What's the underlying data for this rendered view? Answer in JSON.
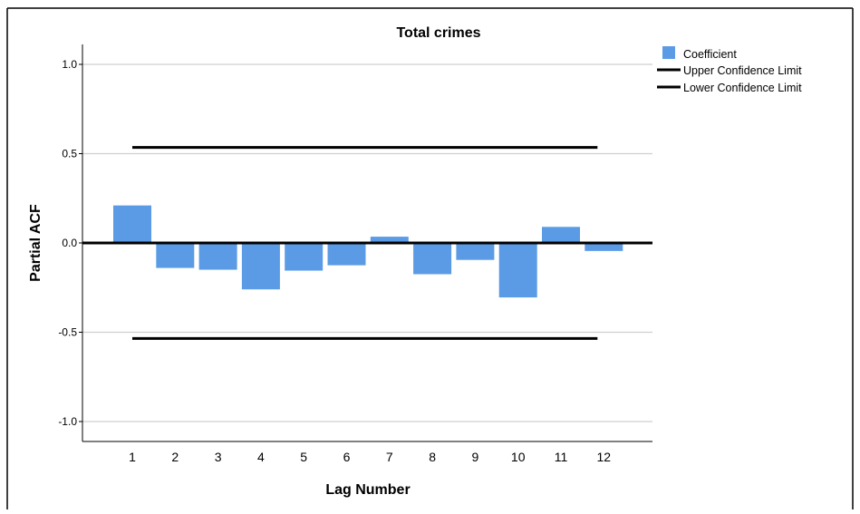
{
  "chart_data": {
    "type": "bar",
    "title": "Total crimes",
    "xlabel": "Lag Number",
    "ylabel": "Partial ACF",
    "categories": [
      "1",
      "2",
      "3",
      "4",
      "5",
      "6",
      "7",
      "8",
      "9",
      "10",
      "11",
      "12"
    ],
    "series": [
      {
        "name": "Coefficient",
        "values": [
          0.21,
          -0.14,
          -0.15,
          -0.26,
          -0.155,
          -0.125,
          0.035,
          -0.175,
          -0.095,
          -0.305,
          0.09,
          -0.045
        ]
      }
    ],
    "upper_confidence_limit": 0.535,
    "lower_confidence_limit": -0.535,
    "ylim": [
      -1.1,
      1.1
    ],
    "yticks": [
      1.0,
      0.5,
      0.0,
      -0.5,
      -1.0
    ],
    "ytick_labels": [
      "1.0",
      "0.5",
      "0.0",
      "-0.5",
      "-1.0"
    ],
    "legend": {
      "position": "top-right",
      "entries": [
        "Coefficient",
        "Upper Confidence Limit",
        "Lower Confidence Limit"
      ]
    },
    "grid": true,
    "colors": {
      "bar": "#5b9be6",
      "limit_line": "#000000",
      "grid": "#cfcfcf",
      "frame": "#000000"
    }
  }
}
